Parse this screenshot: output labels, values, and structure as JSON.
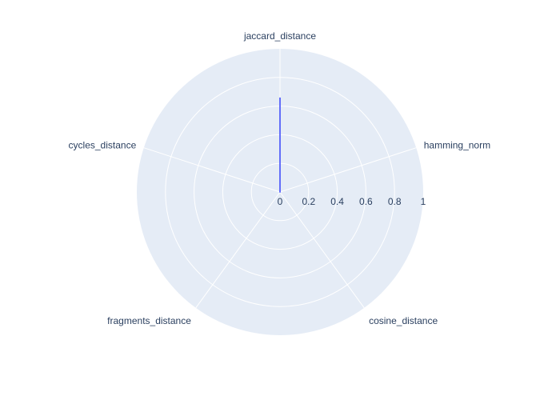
{
  "chart_data": {
    "type": "radar",
    "axes": [
      "jaccard_distance",
      "hamming_norm",
      "cosine_distance",
      "fragments_distance",
      "cycles_distance"
    ],
    "series": [
      {
        "values": [
          0.66,
          0,
          0,
          0,
          0
        ],
        "color": "#636efa"
      }
    ],
    "radial_range": [
      0,
      1
    ],
    "radial_ticks": [
      "0",
      "0.2",
      "0.4",
      "0.6",
      "0.8",
      "1"
    ],
    "radial_tick_values": [
      0,
      0.2,
      0.4,
      0.6,
      0.8,
      1
    ],
    "grid": true,
    "colors": {
      "background": "#e5ecf6",
      "grid": "#ffffff",
      "text": "#2a3f5f"
    }
  }
}
